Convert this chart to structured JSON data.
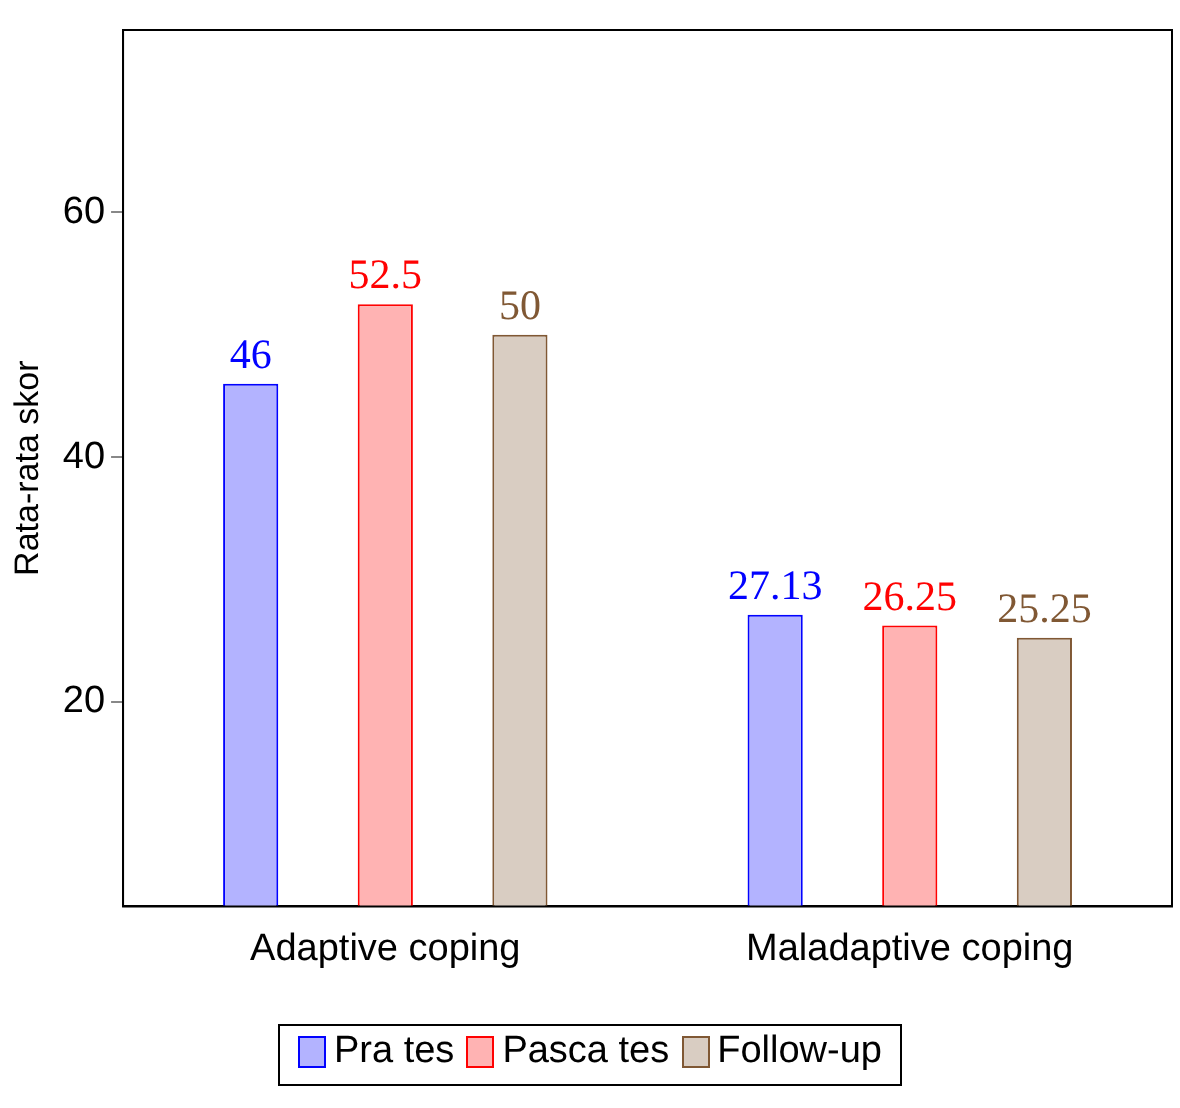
{
  "chart_data": {
    "type": "bar",
    "ylabel": "Rata-rata skor",
    "categories": [
      "Adaptive coping",
      "Maladaptive coping"
    ],
    "series": [
      {
        "name": "Pra tes",
        "color": "#b3b3ff",
        "values": [
          46,
          27.13
        ]
      },
      {
        "name": "Pasca tes",
        "color": "#ffb3b3",
        "values": [
          52.5,
          26.25
        ]
      },
      {
        "name": "Follow-up",
        "color": "#d9cdc2",
        "values": [
          50,
          25.25
        ]
      }
    ],
    "ylim": [
      3.3,
      74.9
    ],
    "yticks": [
      20,
      40,
      60
    ],
    "grid": false,
    "legend": "bottom",
    "data_labels": true
  }
}
